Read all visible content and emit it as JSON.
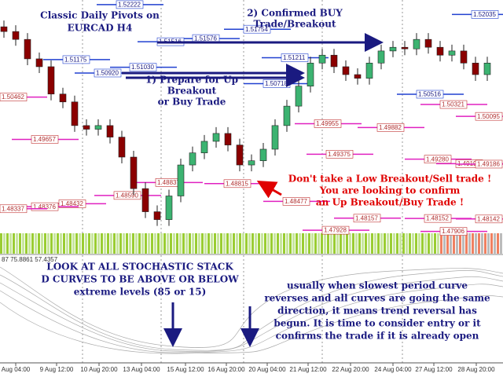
{
  "chart_data": {
    "type": "candlestick",
    "ylim": [
      1.4787,
      1.5231
    ],
    "up_color": "#3cb371",
    "down_color": "#8b0000",
    "open": [
      1.518,
      1.5171,
      1.5156,
      1.5119,
      1.5104,
      1.5052,
      1.5037,
      1.4992,
      1.4985,
      1.4992,
      1.497,
      1.4932,
      1.4872,
      1.4828,
      1.4813,
      1.4858,
      1.4917,
      1.494,
      1.4962,
      1.4977,
      1.4955,
      1.4917,
      1.4925,
      1.4947,
      1.4992,
      1.5029,
      1.5067,
      1.5111,
      1.5126,
      1.5104,
      1.5089,
      1.5082,
      1.5111,
      1.5134,
      1.5141,
      1.5138,
      1.5156,
      1.5141,
      1.5126,
      1.5134,
      1.5111,
      1.5089
    ],
    "high": [
      1.5192,
      1.5183,
      1.5168,
      1.5131,
      1.5116,
      1.5064,
      1.5049,
      1.5004,
      1.5004,
      1.5004,
      1.4982,
      1.4944,
      1.4884,
      1.484,
      1.487,
      1.4929,
      1.4952,
      1.4974,
      1.4989,
      1.4989,
      1.4967,
      1.4937,
      1.4959,
      1.5004,
      1.5041,
      1.5079,
      1.5123,
      1.5138,
      1.5138,
      1.5116,
      1.5101,
      1.5123,
      1.5146,
      1.5153,
      1.5153,
      1.5168,
      1.5168,
      1.5153,
      1.5146,
      1.5146,
      1.5123,
      1.5123
    ],
    "low": [
      1.5159,
      1.5144,
      1.5107,
      1.5092,
      1.504,
      1.5025,
      1.498,
      1.4973,
      1.4973,
      1.4958,
      1.492,
      1.486,
      1.4816,
      1.4801,
      1.4801,
      1.4846,
      1.4905,
      1.4928,
      1.495,
      1.4943,
      1.4905,
      1.4905,
      1.4913,
      1.4935,
      1.498,
      1.5017,
      1.5055,
      1.5099,
      1.5092,
      1.5077,
      1.507,
      1.507,
      1.5099,
      1.5122,
      1.5126,
      1.5126,
      1.5129,
      1.5114,
      1.5114,
      1.5099,
      1.5077,
      1.5077
    ],
    "close": [
      1.5171,
      1.5156,
      1.5119,
      1.5104,
      1.5052,
      1.5037,
      1.4992,
      1.4985,
      1.4992,
      1.497,
      1.4932,
      1.4872,
      1.4828,
      1.4813,
      1.4858,
      1.4917,
      1.494,
      1.4962,
      1.4977,
      1.4955,
      1.4917,
      1.4925,
      1.4947,
      1.4992,
      1.5029,
      1.5067,
      1.5111,
      1.5126,
      1.5104,
      1.5089,
      1.5082,
      1.5111,
      1.5134,
      1.5141,
      1.5138,
      1.5156,
      1.5141,
      1.5126,
      1.5134,
      1.5111,
      1.5089,
      1.5111
    ],
    "x_tick_labels": [
      "Aug 04:00",
      "9 Aug 12:00",
      "10 Aug 20:00",
      "13 Aug 04:00",
      "15 Aug 12:00",
      "16 Aug 20:00",
      "20 Aug 04:00",
      "21 Aug 12:00",
      "22 Aug 20:00",
      "24 Aug 04:00",
      "27 Aug 12:00",
      "28 Aug 20:00"
    ],
    "price_labels": [
      1.52222,
      1.52035,
      1.51754,
      1.51576,
      1.51516,
      1.51175,
      {
        "value": 1.5103,
        "label": "1.51030"
      },
      {
        "value": 1.5092,
        "label": "1.50920"
      },
      1.51211,
      1.50718,
      1.50516,
      1.50321,
      1.50462,
      1.50095,
      1.49955,
      1.49882,
      1.49657,
      1.49375,
      {
        "value": 1.4928,
        "label": "1.49280"
      },
      1.49194,
      1.49186,
      1.48837,
      1.48815,
      {
        "value": 1.4859,
        "label": "1.48590"
      },
      1.48477,
      1.48432,
      1.48376,
      1.48337,
      1.48157,
      1.48152,
      1.48142,
      1.47928,
      1.47906
    ],
    "indicator_header": "87 75.8861 57.4357",
    "annotations": [
      {
        "lines": [
          "Classic Daily Pivots on",
          "EURCAD H4"
        ],
        "color": "#1a1a80"
      },
      {
        "lines": [
          "2) Confirmed BUY",
          "Trade/Breakout"
        ],
        "color": "#1a1a80"
      },
      {
        "lines": [
          "1) Prepare for Up",
          "Breakout",
          "or Buy Trade"
        ],
        "color": "#1a1a80"
      },
      {
        "lines": [
          "Don't take a Low Breakout/Sell trade !",
          "You are looking to confirm",
          "an Up Breakout/Buy Trade !"
        ],
        "color": "#e00000"
      },
      {
        "lines": [
          "LOOK AT ALL STOCHASTIC STACK",
          "D CURVES TO BE ABOVE OR BELOW",
          "extreme levels (85 or 15)"
        ],
        "color": "#1a1a80"
      },
      {
        "lines": [
          "usually when slowest period curve",
          "reverses and all curves are going the same",
          "direction, it means trend reversal has",
          "begun. It is time to consider entry or it",
          "confirms the trade if it is already open"
        ],
        "color": "#1a1a80"
      }
    ]
  }
}
